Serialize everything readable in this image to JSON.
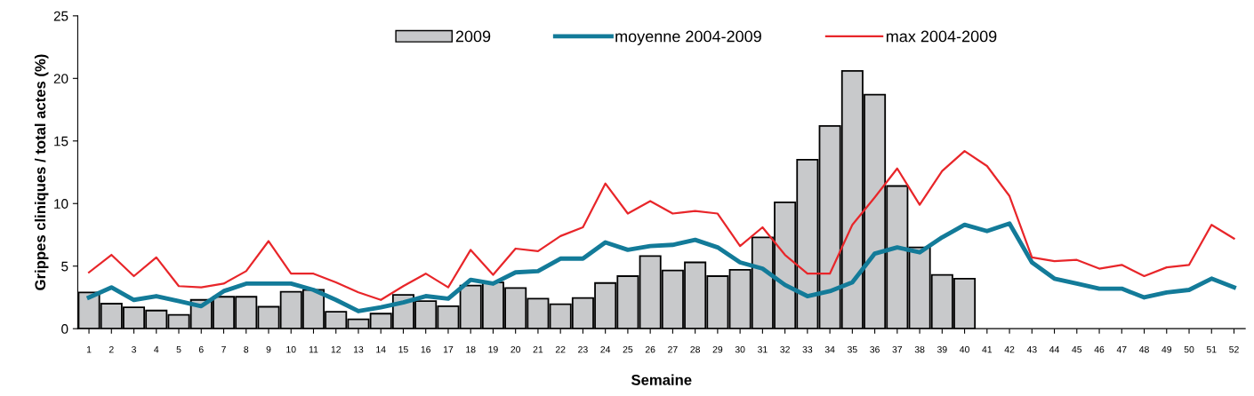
{
  "chart_data": {
    "type": "bar",
    "ylabel": "Grippes cliniques / total actes (%)",
    "xlabel": "Semaine",
    "categories": [
      "1",
      "2",
      "3",
      "4",
      "5",
      "6",
      "7",
      "8",
      "9",
      "10",
      "11",
      "12",
      "13",
      "14",
      "15",
      "16",
      "17",
      "18",
      "19",
      "20",
      "21",
      "22",
      "23",
      "24",
      "25",
      "26",
      "27",
      "28",
      "29",
      "30",
      "31",
      "32",
      "33",
      "34",
      "35",
      "36",
      "37",
      "38",
      "39",
      "40",
      "41",
      "42",
      "43",
      "44",
      "45",
      "46",
      "47",
      "48",
      "49",
      "50",
      "51",
      "52"
    ],
    "series": [
      {
        "name": "2009",
        "color": "#c8c9cb",
        "values": [
          2.9,
          2.0,
          1.7,
          1.45,
          1.1,
          2.3,
          2.55,
          2.55,
          1.75,
          2.95,
          3.1,
          1.35,
          0.75,
          1.2,
          2.7,
          2.2,
          1.8,
          3.45,
          3.7,
          3.25,
          2.4,
          1.95,
          2.45,
          3.65,
          4.2,
          5.8,
          4.65,
          5.3,
          4.2,
          4.7,
          7.3,
          10.1,
          13.5,
          16.2,
          20.6,
          18.7,
          11.4,
          6.5,
          4.3,
          4.0,
          null,
          null,
          null,
          null,
          null,
          null,
          null,
          null,
          null,
          null,
          null,
          null
        ]
      },
      {
        "name": "moyenne 2004-2009",
        "type": "line",
        "color": "#137b99",
        "values": [
          2.5,
          3.3,
          2.3,
          2.6,
          2.2,
          1.8,
          3.0,
          3.6,
          3.6,
          3.6,
          3.1,
          2.3,
          1.4,
          1.7,
          2.1,
          2.6,
          2.4,
          3.9,
          3.6,
          4.5,
          4.6,
          5.6,
          5.6,
          6.9,
          6.3,
          6.6,
          6.7,
          7.1,
          6.5,
          5.3,
          4.8,
          3.5,
          2.6,
          3.0,
          3.7,
          6.0,
          6.5,
          6.1,
          7.3,
          8.3,
          7.8,
          8.4,
          5.3,
          4.0,
          3.6,
          3.2,
          3.2,
          2.5,
          2.9,
          3.1,
          4.0,
          3.3
        ]
      },
      {
        "name": "max 2004-2009",
        "type": "line",
        "color": "#e8262a",
        "values": [
          4.5,
          5.9,
          4.2,
          5.7,
          3.4,
          3.3,
          3.6,
          4.6,
          7.0,
          4.4,
          4.4,
          3.7,
          2.9,
          2.3,
          3.4,
          4.4,
          3.3,
          6.3,
          4.3,
          6.4,
          6.2,
          7.4,
          8.1,
          11.6,
          9.2,
          10.2,
          9.2,
          9.4,
          9.2,
          6.6,
          8.1,
          5.9,
          4.4,
          4.4,
          8.3,
          10.5,
          12.8,
          9.9,
          12.6,
          14.2,
          13.0,
          10.6,
          5.7,
          5.4,
          5.5,
          4.8,
          5.1,
          4.2,
          4.9,
          5.1,
          8.3,
          7.2
        ]
      }
    ],
    "ylim": [
      0,
      25
    ],
    "yticks": [
      0,
      5,
      10,
      15,
      20,
      25
    ],
    "grid": false,
    "legend": "top",
    "marker": "none",
    "line_style": "solid"
  }
}
